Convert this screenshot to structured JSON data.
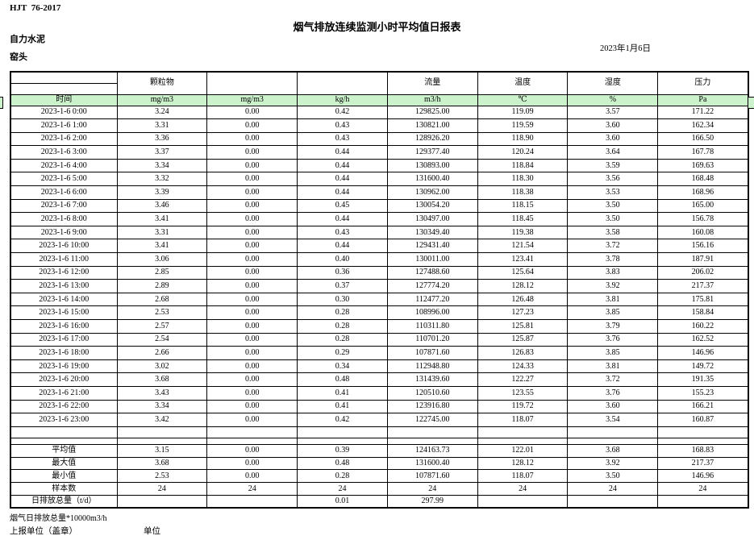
{
  "page": {
    "standard": "HJT  76-2017",
    "title": "烟气排放连续监测小时平均值日报表",
    "company": "自力水泥",
    "station": "窑头",
    "date": "2023年1月6日"
  },
  "colors": {
    "unit_row_green": "#ccf2cc",
    "border": "#000000"
  },
  "table": {
    "pollutant_headers": [
      "",
      "颗粒物",
      "",
      "",
      "流量",
      "温度",
      "湿度",
      "压力"
    ],
    "unit_headers": [
      "时间",
      "mg/m3",
      "mg/m3",
      "kg/h",
      "m3/h",
      "℃",
      "%",
      "Pa"
    ],
    "rows": [
      {
        "time": "2023-1-6 0:00",
        "values": [
          "3.24",
          "0.00",
          "0.42",
          "129825.00",
          "119.09",
          "3.57",
          "171.22"
        ]
      },
      {
        "time": "2023-1-6 1:00",
        "values": [
          "3.31",
          "0.00",
          "0.43",
          "130821.00",
          "119.59",
          "3.60",
          "162.34"
        ]
      },
      {
        "time": "2023-1-6 2:00",
        "values": [
          "3.36",
          "0.00",
          "0.43",
          "128926.20",
          "118.90",
          "3.60",
          "166.50"
        ]
      },
      {
        "time": "2023-1-6 3:00",
        "values": [
          "3.37",
          "0.00",
          "0.44",
          "129377.40",
          "120.24",
          "3.64",
          "167.78"
        ]
      },
      {
        "time": "2023-1-6 4:00",
        "values": [
          "3.34",
          "0.00",
          "0.44",
          "130893.00",
          "118.84",
          "3.59",
          "169.63"
        ]
      },
      {
        "time": "2023-1-6 5:00",
        "values": [
          "3.32",
          "0.00",
          "0.44",
          "131600.40",
          "118.30",
          "3.56",
          "168.48"
        ]
      },
      {
        "time": "2023-1-6 6:00",
        "values": [
          "3.39",
          "0.00",
          "0.44",
          "130962.00",
          "118.38",
          "3.53",
          "168.96"
        ]
      },
      {
        "time": "2023-1-6 7:00",
        "values": [
          "3.46",
          "0.00",
          "0.45",
          "130054.20",
          "118.15",
          "3.50",
          "165.00"
        ]
      },
      {
        "time": "2023-1-6 8:00",
        "values": [
          "3.41",
          "0.00",
          "0.44",
          "130497.00",
          "118.45",
          "3.50",
          "156.78"
        ]
      },
      {
        "time": "2023-1-6 9:00",
        "values": [
          "3.31",
          "0.00",
          "0.43",
          "130349.40",
          "119.38",
          "3.58",
          "160.08"
        ]
      },
      {
        "time": "2023-1-6 10:00",
        "values": [
          "3.41",
          "0.00",
          "0.44",
          "129431.40",
          "121.54",
          "3.72",
          "156.16"
        ]
      },
      {
        "time": "2023-1-6 11:00",
        "values": [
          "3.06",
          "0.00",
          "0.40",
          "130011.00",
          "123.41",
          "3.78",
          "187.91"
        ]
      },
      {
        "time": "2023-1-6 12:00",
        "values": [
          "2.85",
          "0.00",
          "0.36",
          "127488.60",
          "125.64",
          "3.83",
          "206.02"
        ]
      },
      {
        "time": "2023-1-6 13:00",
        "values": [
          "2.89",
          "0.00",
          "0.37",
          "127774.20",
          "128.12",
          "3.92",
          "217.37"
        ]
      },
      {
        "time": "2023-1-6 14:00",
        "values": [
          "2.68",
          "0.00",
          "0.30",
          "112477.20",
          "126.48",
          "3.81",
          "175.81"
        ]
      },
      {
        "time": "2023-1-6 15:00",
        "values": [
          "2.53",
          "0.00",
          "0.28",
          "108996.00",
          "127.23",
          "3.85",
          "158.84"
        ]
      },
      {
        "time": "2023-1-6 16:00",
        "values": [
          "2.57",
          "0.00",
          "0.28",
          "110311.80",
          "125.81",
          "3.79",
          "160.22"
        ]
      },
      {
        "time": "2023-1-6 17:00",
        "values": [
          "2.54",
          "0.00",
          "0.28",
          "110701.20",
          "125.87",
          "3.76",
          "162.52"
        ]
      },
      {
        "time": "2023-1-6 18:00",
        "values": [
          "2.66",
          "0.00",
          "0.29",
          "107871.60",
          "126.83",
          "3.85",
          "146.96"
        ]
      },
      {
        "time": "2023-1-6 19:00",
        "values": [
          "3.02",
          "0.00",
          "0.34",
          "112948.80",
          "124.33",
          "3.81",
          "149.72"
        ]
      },
      {
        "time": "2023-1-6 20:00",
        "values": [
          "3.68",
          "0.00",
          "0.48",
          "131439.60",
          "122.27",
          "3.72",
          "191.35"
        ]
      },
      {
        "time": "2023-1-6 21:00",
        "values": [
          "3.43",
          "0.00",
          "0.41",
          "120510.60",
          "123.55",
          "3.76",
          "155.23"
        ]
      },
      {
        "time": "2023-1-6 22:00",
        "values": [
          "3.34",
          "0.00",
          "0.41",
          "123916.80",
          "119.72",
          "3.60",
          "166.21"
        ]
      },
      {
        "time": "2023-1-6 23:00",
        "values": [
          "3.42",
          "0.00",
          "0.42",
          "122745.00",
          "118.07",
          "3.54",
          "160.87"
        ]
      }
    ],
    "summary": [
      {
        "label": "平均值",
        "values": [
          "3.15",
          "0.00",
          "0.39",
          "124163.73",
          "122.01",
          "3.68",
          "168.83"
        ]
      },
      {
        "label": "最大值",
        "values": [
          "3.68",
          "0.00",
          "0.48",
          "131600.40",
          "128.12",
          "3.92",
          "217.37"
        ]
      },
      {
        "label": "最小值",
        "values": [
          "2.53",
          "0.00",
          "0.28",
          "107871.60",
          "118.07",
          "3.50",
          "146.96"
        ]
      },
      {
        "label": "样本数",
        "values": [
          "24",
          "24",
          "24",
          "24",
          "24",
          "24",
          "24"
        ]
      },
      {
        "label": "日排放总量（t/d）",
        "values": [
          "",
          "",
          "0.01",
          "297.99",
          "",
          "",
          ""
        ]
      }
    ]
  },
  "footer": {
    "note": "烟气日排放总量*10000m3/h",
    "stamp_label": "上报单位（盖章）",
    "unit_label": "单位"
  }
}
